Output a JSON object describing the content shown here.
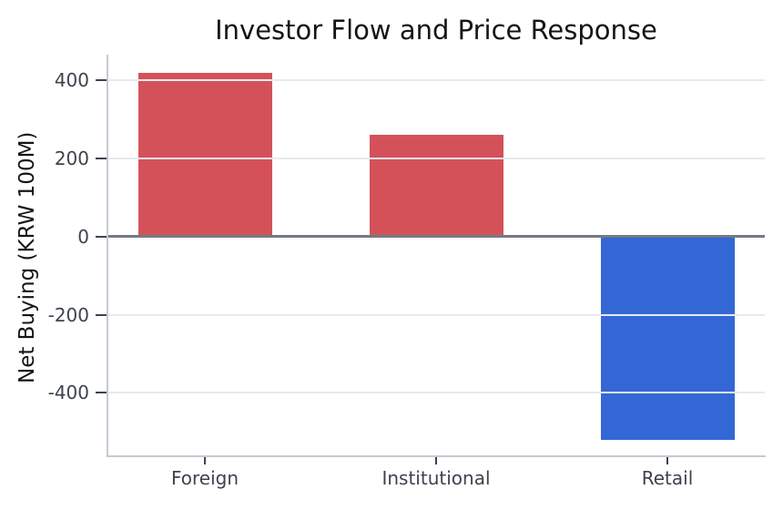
{
  "chart_data": {
    "type": "bar",
    "title": "Investor Flow and Price Response",
    "xlabel": "",
    "ylabel": "Net Buying (KRW 100M)",
    "categories": [
      "Foreign",
      "Institutional",
      "Retail"
    ],
    "values": [
      420,
      260,
      -520
    ],
    "bar_colors": [
      "#d4515a",
      "#d4515a",
      "#3467d6"
    ],
    "yticks": [
      400,
      200,
      0,
      -200,
      -400
    ],
    "ylim": [
      -560,
      466
    ],
    "grid": true,
    "legend": false,
    "zero_line": true,
    "colors": {
      "positive_bar": "#d4515a",
      "negative_bar": "#3467d6",
      "gridline": "#e7eaef",
      "spine": "#c4cad3",
      "zero_line": "#737a84",
      "tick_text": "#3d434e",
      "tick_mark": "#3d434e",
      "title_text": "#151515"
    }
  }
}
